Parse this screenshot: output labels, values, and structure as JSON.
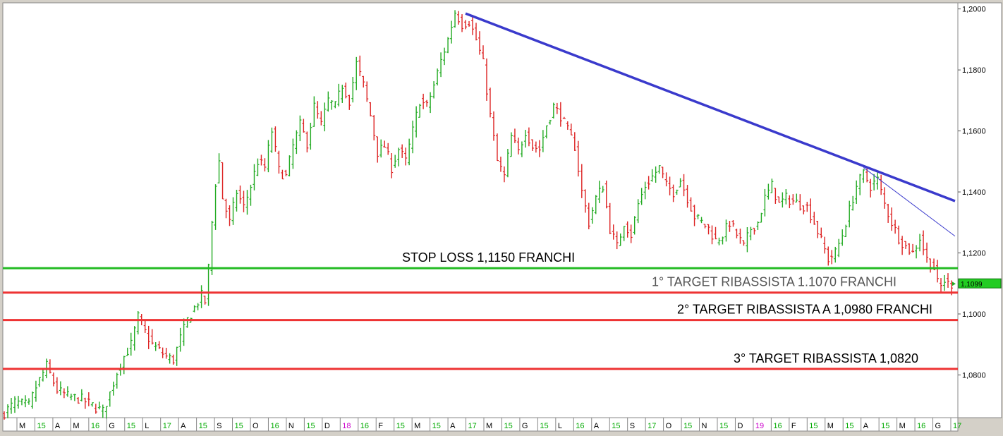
{
  "chart_data": {
    "type": "candlestick",
    "title": "",
    "ylim": [
      1.066,
      1.202
    ],
    "y_ticks": [
      {
        "value": 1.08,
        "label": "1,0800"
      },
      {
        "value": 1.1,
        "label": "1,1000"
      },
      {
        "value": 1.12,
        "label": "1,1200"
      },
      {
        "value": 1.14,
        "label": "1,1400"
      },
      {
        "value": 1.16,
        "label": "1,1600"
      },
      {
        "value": 1.18,
        "label": "1,1800"
      },
      {
        "value": 1.2,
        "label": "1,2000"
      }
    ],
    "x_ticks": [
      "M",
      "15",
      "A",
      "M",
      "16",
      "G",
      "15",
      "L",
      "17",
      "A",
      "15",
      "S",
      "15",
      "O",
      "16",
      "N",
      "15",
      "D",
      "18",
      "16",
      "F",
      "15",
      "M",
      "15",
      "A",
      "17",
      "M",
      "15",
      "G",
      "15",
      "L",
      "16",
      "A",
      "15",
      "S",
      "17",
      "O",
      "15",
      "N",
      "15",
      "D",
      "19",
      "16",
      "F",
      "15",
      "M",
      "15",
      "A",
      "15",
      "M",
      "16",
      "G",
      "17"
    ],
    "x_tick_colors": {
      "month": "#000000",
      "day": "#00aa00",
      "year": "#cc00cc"
    },
    "year_tick_indices": [
      18,
      41
    ],
    "price_path": [
      [
        0,
        1.0665
      ],
      [
        4,
        1.071
      ],
      [
        8,
        1.07
      ],
      [
        10,
        1.076
      ],
      [
        13,
        1.083
      ],
      [
        16,
        1.075
      ],
      [
        19,
        1.073
      ],
      [
        23,
        1.072
      ],
      [
        26,
        1.07
      ],
      [
        29,
        1.068
      ],
      [
        31,
        1.074
      ],
      [
        33,
        1.081
      ],
      [
        35,
        1.086
      ],
      [
        37,
        1.09
      ],
      [
        39,
        1.099
      ],
      [
        41,
        1.094
      ],
      [
        43,
        1.09
      ],
      [
        45,
        1.088
      ],
      [
        47,
        1.086
      ],
      [
        49,
        1.085
      ],
      [
        51,
        1.092
      ],
      [
        53,
        1.098
      ],
      [
        55,
        1.102
      ],
      [
        57,
        1.106
      ],
      [
        58,
        1.104
      ],
      [
        59,
        1.115
      ],
      [
        60,
        1.13
      ],
      [
        61,
        1.143
      ],
      [
        62,
        1.15
      ],
      [
        63,
        1.138
      ],
      [
        65,
        1.13
      ],
      [
        67,
        1.14
      ],
      [
        69,
        1.135
      ],
      [
        71,
        1.142
      ],
      [
        73,
        1.15
      ],
      [
        75,
        1.148
      ],
      [
        77,
        1.16
      ],
      [
        79,
        1.147
      ],
      [
        81,
        1.145
      ],
      [
        83,
        1.155
      ],
      [
        85,
        1.162
      ],
      [
        87,
        1.156
      ],
      [
        89,
        1.168
      ],
      [
        91,
        1.162
      ],
      [
        93,
        1.17
      ],
      [
        95,
        1.168
      ],
      [
        97,
        1.175
      ],
      [
        99,
        1.17
      ],
      [
        101,
        1.182
      ],
      [
        103,
        1.175
      ],
      [
        105,
        1.165
      ],
      [
        107,
        1.153
      ],
      [
        109,
        1.155
      ],
      [
        111,
        1.148
      ],
      [
        113,
        1.154
      ],
      [
        115,
        1.15
      ],
      [
        117,
        1.16
      ],
      [
        119,
        1.17
      ],
      [
        121,
        1.168
      ],
      [
        123,
        1.175
      ],
      [
        125,
        1.183
      ],
      [
        127,
        1.19
      ],
      [
        129,
        1.199
      ],
      [
        131,
        1.195
      ],
      [
        133,
        1.196
      ],
      [
        135,
        1.19
      ],
      [
        137,
        1.182
      ],
      [
        139,
        1.165
      ],
      [
        141,
        1.15
      ],
      [
        143,
        1.145
      ],
      [
        145,
        1.158
      ],
      [
        147,
        1.153
      ],
      [
        149,
        1.16
      ],
      [
        151,
        1.155
      ],
      [
        153,
        1.154
      ],
      [
        155,
        1.162
      ],
      [
        157,
        1.168
      ],
      [
        159,
        1.165
      ],
      [
        161,
        1.16
      ],
      [
        163,
        1.155
      ],
      [
        165,
        1.14
      ],
      [
        167,
        1.13
      ],
      [
        169,
        1.138
      ],
      [
        171,
        1.142
      ],
      [
        173,
        1.128
      ],
      [
        175,
        1.122
      ],
      [
        177,
        1.13
      ],
      [
        179,
        1.126
      ],
      [
        181,
        1.136
      ],
      [
        183,
        1.142
      ],
      [
        185,
        1.145
      ],
      [
        187,
        1.148
      ],
      [
        189,
        1.142
      ],
      [
        191,
        1.14
      ],
      [
        193,
        1.144
      ],
      [
        195,
        1.138
      ],
      [
        197,
        1.132
      ],
      [
        199,
        1.13
      ],
      [
        201,
        1.128
      ],
      [
        203,
        1.124
      ],
      [
        205,
        1.126
      ],
      [
        207,
        1.13
      ],
      [
        209,
        1.126
      ],
      [
        211,
        1.122
      ],
      [
        213,
        1.128
      ],
      [
        215,
        1.13
      ],
      [
        217,
        1.138
      ],
      [
        219,
        1.142
      ],
      [
        221,
        1.136
      ],
      [
        223,
        1.138
      ],
      [
        225,
        1.137
      ],
      [
        227,
        1.136
      ],
      [
        229,
        1.135
      ],
      [
        231,
        1.13
      ],
      [
        233,
        1.124
      ],
      [
        235,
        1.118
      ],
      [
        237,
        1.12
      ],
      [
        239,
        1.126
      ],
      [
        241,
        1.134
      ],
      [
        243,
        1.142
      ],
      [
        245,
        1.146
      ],
      [
        247,
        1.142
      ],
      [
        249,
        1.144
      ],
      [
        251,
        1.136
      ],
      [
        253,
        1.13
      ],
      [
        255,
        1.125
      ],
      [
        257,
        1.122
      ],
      [
        259,
        1.12
      ],
      [
        261,
        1.125
      ],
      [
        263,
        1.118
      ],
      [
        265,
        1.115
      ],
      [
        266,
        1.11
      ],
      [
        267,
        1.109
      ],
      [
        268,
        1.111
      ],
      [
        269,
        1.1099
      ]
    ],
    "current_price": {
      "value": 1.1099,
      "label": "1,1099"
    },
    "trendlines": [
      {
        "from": [
          131,
          1.1985
        ],
        "to": [
          270,
          1.137
        ],
        "color": "#3a3acc",
        "width": "thick"
      },
      {
        "from": [
          244,
          1.148
        ],
        "to": [
          270,
          1.1255
        ],
        "color": "#3a3acc",
        "width": "thin"
      }
    ],
    "horizontal_levels": [
      {
        "value": 1.115,
        "color": "#22bb22",
        "label": "STOP LOSS 1,1150 FRANCHI",
        "label_color": "#000000",
        "label_pos": "above"
      },
      {
        "value": 1.107,
        "color": "#ee3333",
        "label": "1° TARGET RIBASSISTA 1.1070 FRANCHI",
        "label_color": "#555555",
        "label_pos": "above"
      },
      {
        "value": 1.098,
        "color": "#ee3333",
        "label": "2° TARGET RIBASSISTA A 1,0980 FRANCHI",
        "label_color": "#000000",
        "label_pos": "above"
      },
      {
        "value": 1.082,
        "color": "#ee3333",
        "label": "3° TARGET RIBASSISTA 1,0820",
        "label_color": "#000000",
        "label_pos": "above"
      }
    ],
    "colors": {
      "up": "#22aa22",
      "down": "#dd2222",
      "background": "#ffffff",
      "axis_bg": "#ffffff",
      "frame": "#888888"
    },
    "grid": false,
    "legend": "none"
  }
}
